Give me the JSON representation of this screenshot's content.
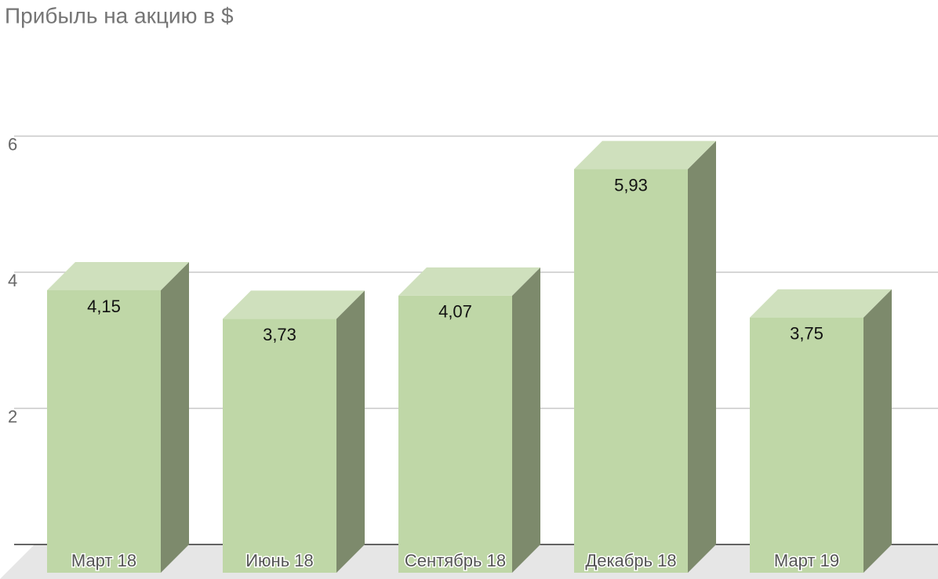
{
  "chart_data": {
    "type": "bar3d",
    "title": "Прибыль на акцию в $",
    "categories": [
      "Март 18",
      "Июнь 18",
      "Сентябрь 18",
      "Декабрь 18",
      "Март 19"
    ],
    "values": [
      4.15,
      3.73,
      4.07,
      5.93,
      3.75
    ],
    "value_labels": [
      "4,15",
      "3,73",
      "4,07",
      "5,93",
      "3,75"
    ],
    "color": "#bfd7a7",
    "ylim": [
      0,
      7
    ],
    "yticks": [
      2,
      4,
      6
    ],
    "grid": true
  }
}
